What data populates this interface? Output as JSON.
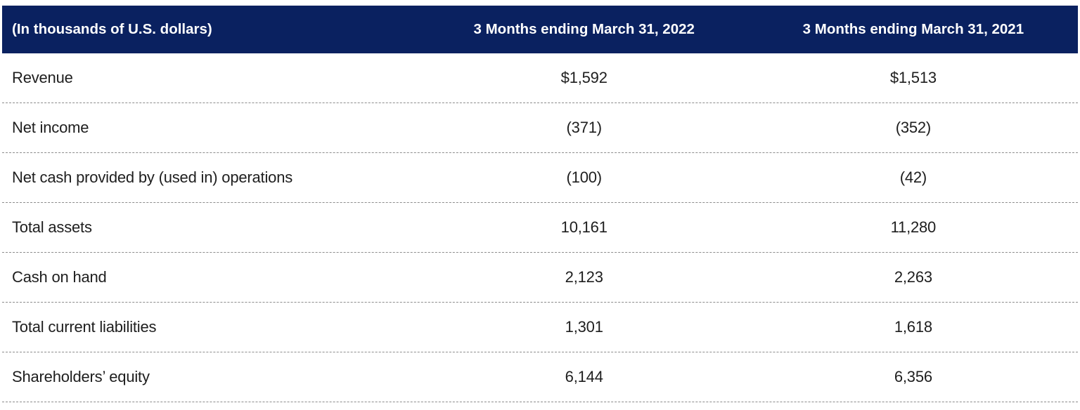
{
  "table": {
    "header": {
      "unit_label": "(In thousands of U.S. dollars)",
      "col_2022": "3 Months ending March 31, 2022",
      "col_2021": "3 Months ending March 31, 2021"
    },
    "rows": [
      {
        "label": "Revenue",
        "v2022": "$1,592",
        "v2021": "$1,513"
      },
      {
        "label": "Net income",
        "v2022": "(371)",
        "v2021": "(352)"
      },
      {
        "label": "Net cash provided by (used in) operations",
        "v2022": "(100)",
        "v2021": "(42)"
      },
      {
        "label": "Total assets",
        "v2022": "10,161",
        "v2021": "11,280"
      },
      {
        "label": "Cash on hand",
        "v2022": "2,123",
        "v2021": "2,263"
      },
      {
        "label": "Total current liabilities",
        "v2022": "1,301",
        "v2021": "1,618"
      },
      {
        "label": "Shareholders’ equity",
        "v2022": "6,144",
        "v2021": "6,356"
      }
    ]
  },
  "colors": {
    "header_bg": "#0A2160",
    "header_text": "#ffffff",
    "body_text": "#1e1e1e",
    "divider": "#8c8c8c"
  },
  "chart_data": {
    "type": "table",
    "columns": [
      "(In thousands of U.S. dollars)",
      "3 Months ending March 31, 2022",
      "3 Months ending March 31, 2021"
    ],
    "rows": [
      [
        "Revenue",
        "$1,592",
        "$1,513"
      ],
      [
        "Net income",
        "(371)",
        "(352)"
      ],
      [
        "Net cash provided by (used in) operations",
        "(100)",
        "(42)"
      ],
      [
        "Total assets",
        "10,161",
        "11,280"
      ],
      [
        "Cash on hand",
        "2,123",
        "2,263"
      ],
      [
        "Total current liabilities",
        "1,301",
        "1,618"
      ],
      [
        "Shareholders’ equity",
        "6,144",
        "6,356"
      ]
    ]
  }
}
